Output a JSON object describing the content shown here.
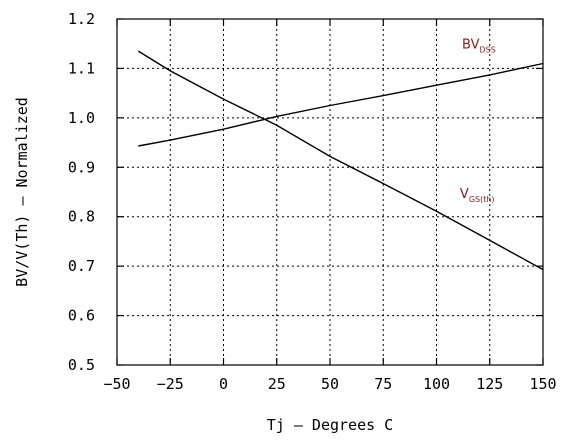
{
  "chart_data": {
    "type": "line",
    "xlabel": "Tj – Degrees C",
    "ylabel": "BV/V(Th) – Normalized",
    "xlim": [
      -50,
      150
    ],
    "ylim": [
      0.5,
      1.2
    ],
    "x_ticks": [
      -50,
      -25,
      0,
      25,
      50,
      75,
      100,
      125,
      150
    ],
    "x_tick_labels": [
      "−50",
      "−25",
      "0",
      "25",
      "50",
      "75",
      "100",
      "125",
      "150"
    ],
    "y_ticks": [
      0.5,
      0.6,
      0.7,
      0.8,
      0.9,
      1.0,
      1.1,
      1.2
    ],
    "y_tick_labels": [
      "0.5",
      "0.6",
      "0.7",
      "0.8",
      "0.9",
      "1.0",
      "1.1",
      "1.2"
    ],
    "grid": true,
    "series": [
      {
        "name": "BV DSS",
        "x": [
          -40,
          -25,
          0,
          25,
          50,
          75,
          100,
          125,
          150
        ],
        "values": [
          0.943,
          0.955,
          0.977,
          1.003,
          1.025,
          1.045,
          1.066,
          1.087,
          1.11
        ]
      },
      {
        "name": "V GS(th)",
        "x": [
          -40,
          -25,
          0,
          25,
          50,
          75,
          100,
          125,
          150
        ],
        "values": [
          1.135,
          1.095,
          1.038,
          0.985,
          0.922,
          0.867,
          0.811,
          0.752,
          0.693
        ]
      }
    ],
    "annotations": [
      {
        "main": "BV",
        "sub": "DSS",
        "x": 112,
        "y": 1.14
      },
      {
        "main": "V",
        "sub": "GS(th)",
        "x": 111,
        "y": 0.838
      }
    ],
    "color_annotation": "#8b1a1a",
    "color_lines": "#000000"
  }
}
